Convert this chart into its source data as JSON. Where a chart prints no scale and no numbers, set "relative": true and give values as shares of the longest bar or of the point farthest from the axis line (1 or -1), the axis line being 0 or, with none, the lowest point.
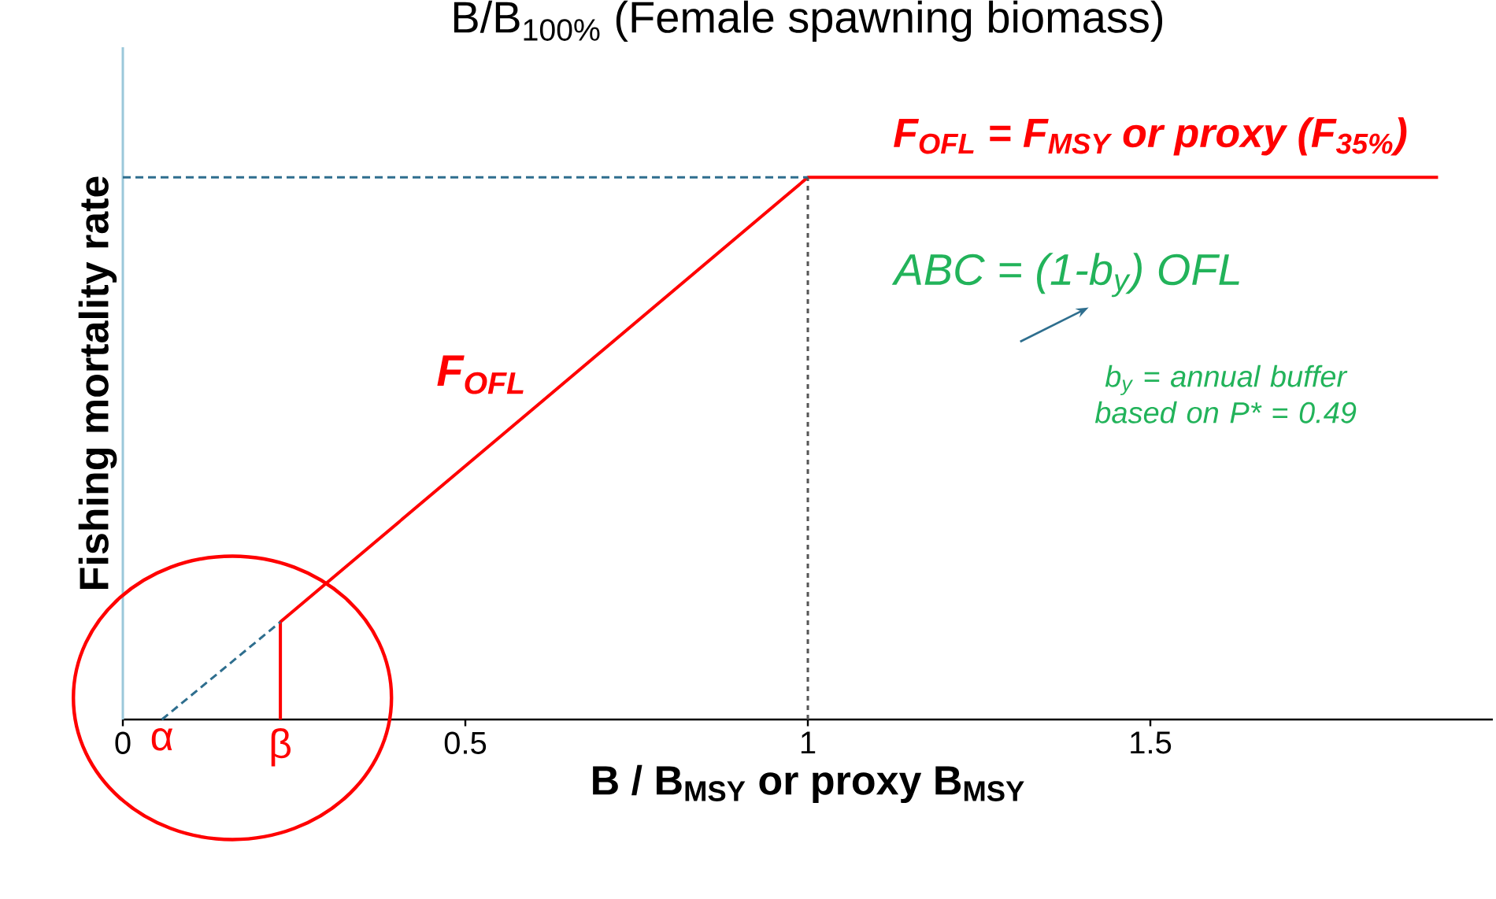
{
  "chart_data": {
    "type": "line",
    "relative": true,
    "title": "B/B$_{100%}$ (Female spawning biomass)",
    "xlabel": "B / B$_{MSY}$ or proxy B$_{MSY}$",
    "ylabel": "Fishing mortality rate",
    "xlim": [
      0,
      2
    ],
    "xticks": [
      0,
      0.5,
      1,
      1.5
    ],
    "series": [
      {
        "name": "F$_{OFL}$",
        "color": "#ff0000",
        "x": [
          0.23,
          0.23,
          1,
          1.92
        ],
        "values": [
          0,
          0.18,
          1,
          1
        ]
      },
      {
        "color": "#2e6e8e",
        "line_style": "dashed",
        "x": [
          0.057,
          0.23
        ],
        "values": [
          0,
          0.18
        ]
      },
      {
        "color": "#2e6e8e",
        "line_style": "dashed",
        "x": [
          0,
          1
        ],
        "values": [
          1,
          1
        ]
      },
      {
        "color": "#555555",
        "line_style": "dotted",
        "x": [
          1,
          1
        ],
        "values": [
          0,
          1
        ]
      }
    ],
    "annotations": [
      "F$_{OFL}$ = F$_{MSY}$ or proxy (F$_{35%}$)",
      "ABC = (1-b$_{y}$) OFL",
      "b$_{y}$ = annual buffer based on P* = 0.49",
      {
        "text": "α",
        "x": 0.057,
        "y": 0
      },
      {
        "text": "β",
        "x": 0.23,
        "y": 0
      }
    ]
  }
}
